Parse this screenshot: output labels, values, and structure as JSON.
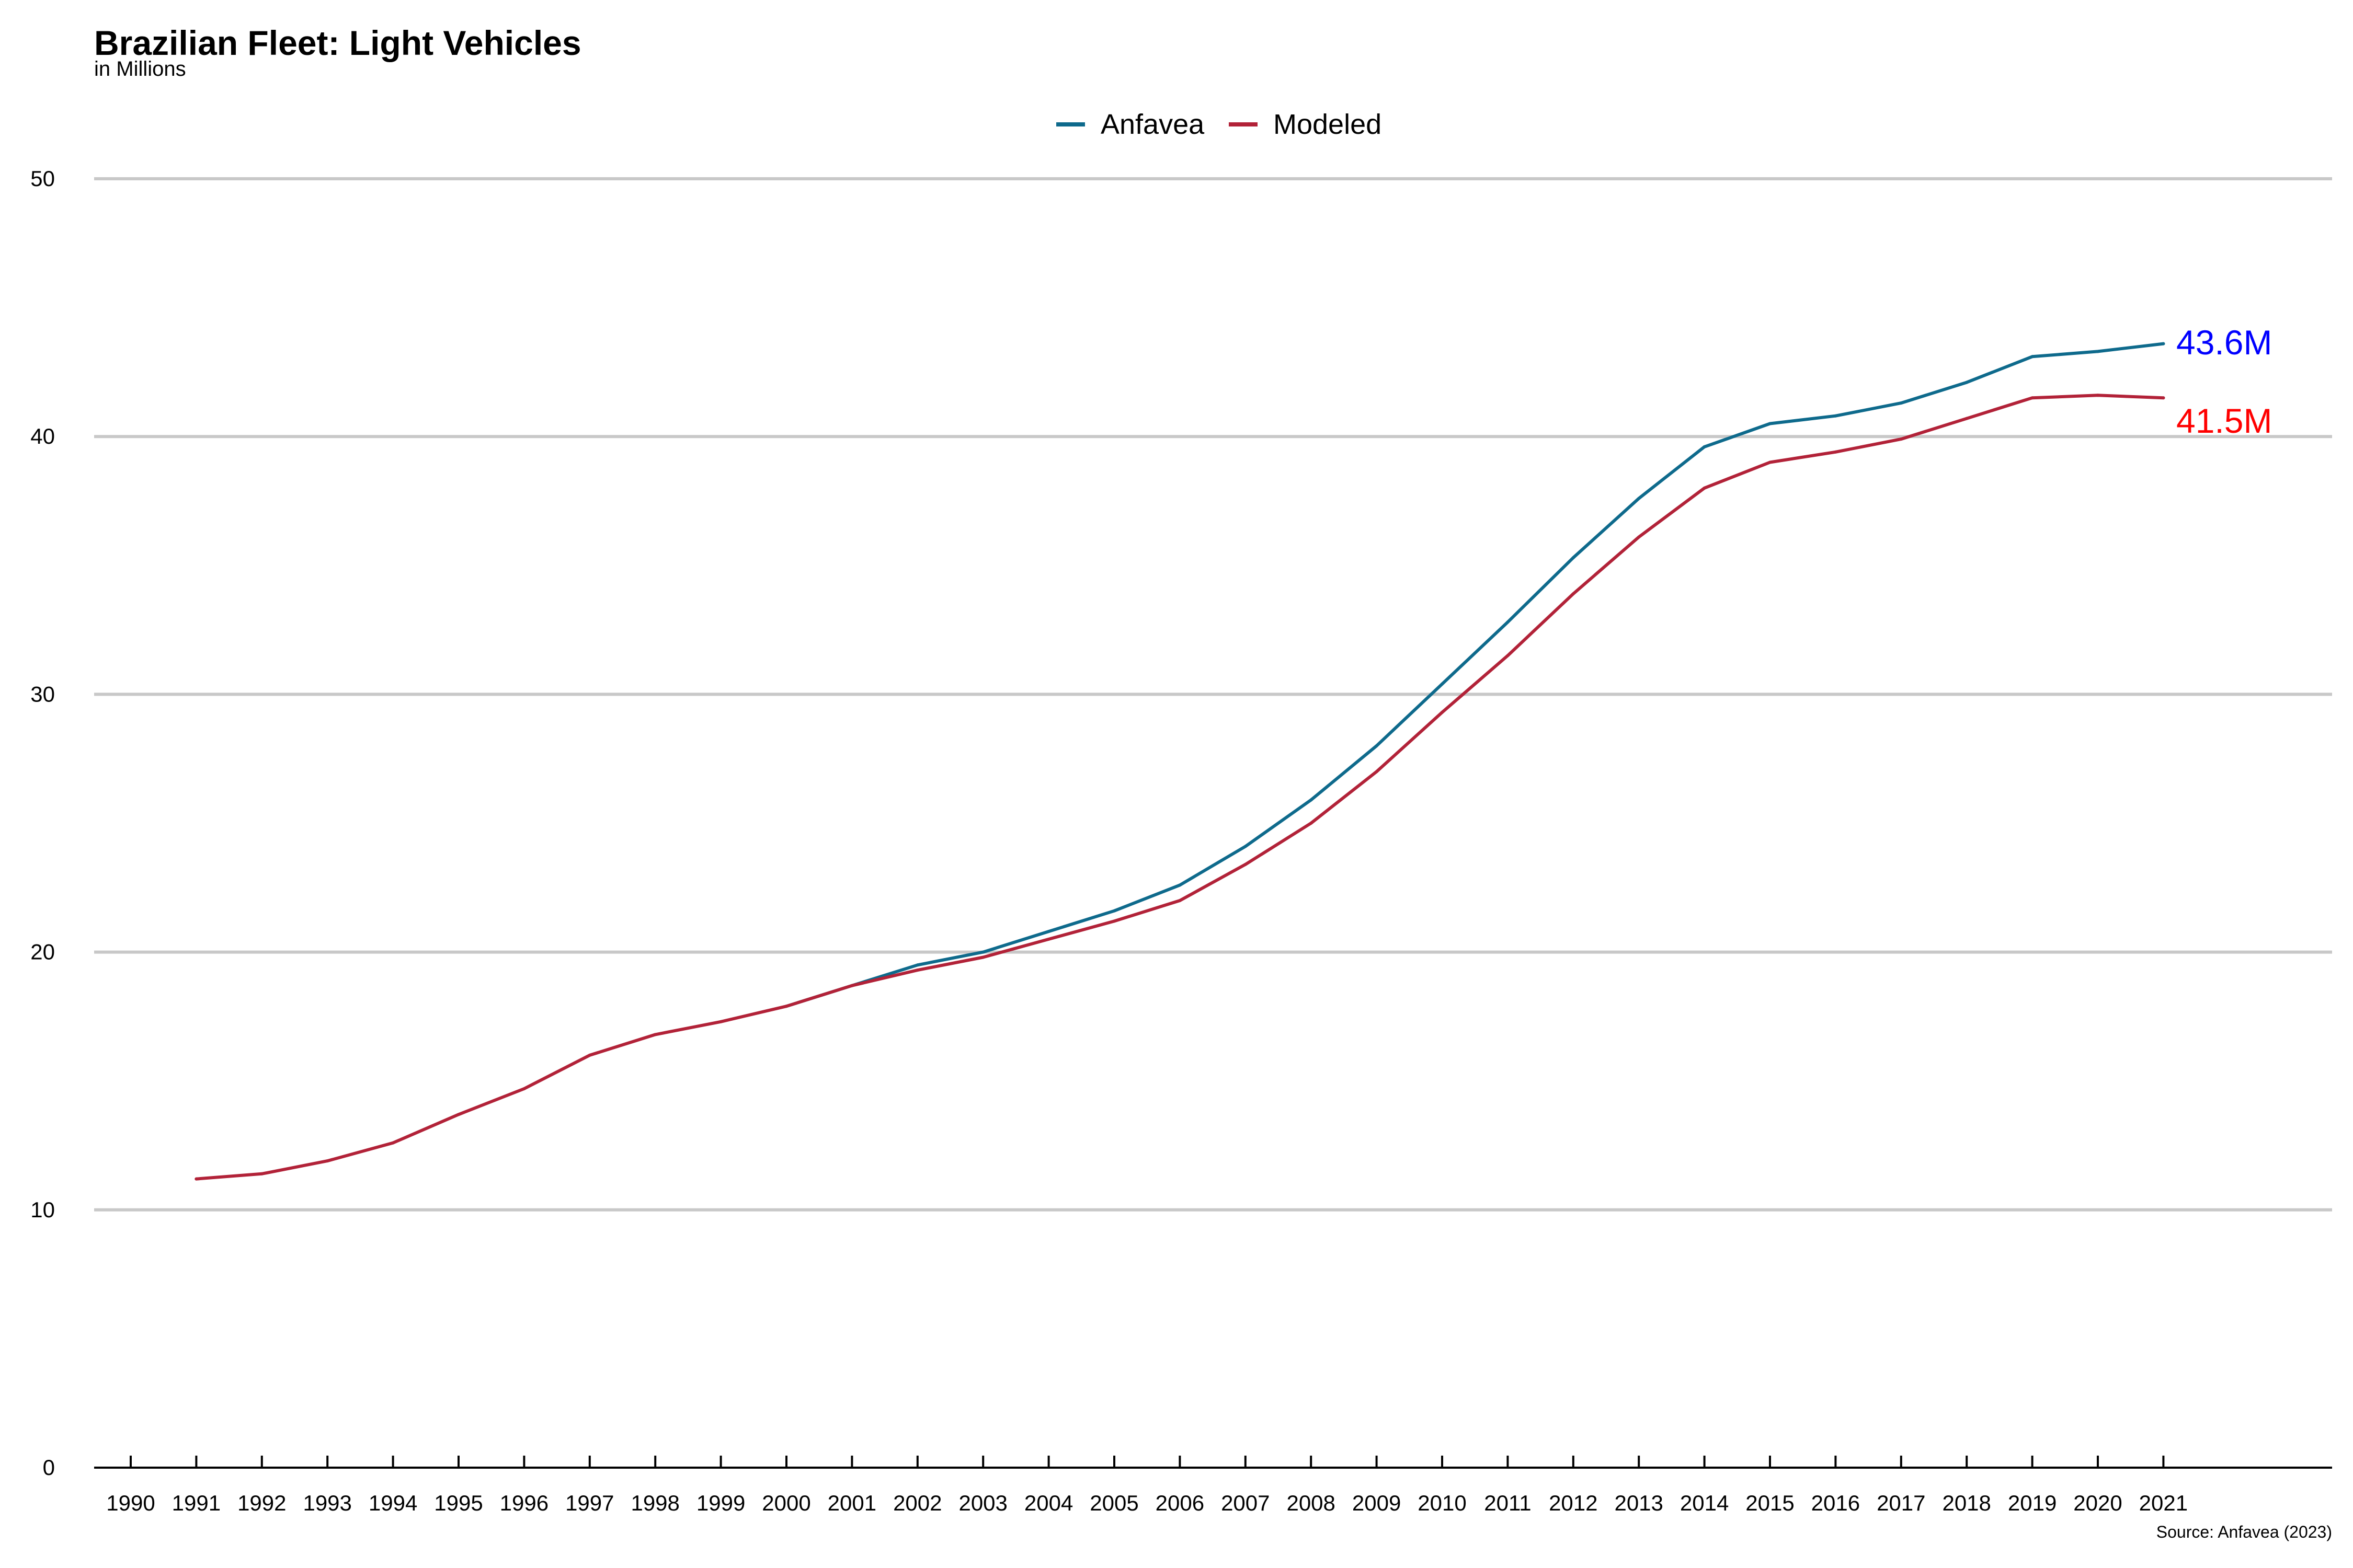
{
  "chart_data": {
    "type": "line",
    "title": "Brazilian Fleet: Light Vehicles",
    "subtitle": "in Millions",
    "source": "Source: Anfavea (2023)",
    "x": [
      1990,
      1991,
      1992,
      1993,
      1994,
      1995,
      1996,
      1997,
      1998,
      1999,
      2000,
      2001,
      2002,
      2003,
      2004,
      2005,
      2006,
      2007,
      2008,
      2009,
      2010,
      2011,
      2012,
      2013,
      2014,
      2015,
      2016,
      2017,
      2018,
      2019,
      2020,
      2021
    ],
    "x_tick_labels": [
      "1990",
      "1991",
      "1992",
      "1993",
      "1994",
      "1995",
      "1996",
      "1997",
      "1998",
      "1999",
      "2000",
      "2001",
      "2002",
      "2003",
      "2004",
      "2005",
      "2006",
      "2007",
      "2008",
      "2009",
      "2010",
      "2011",
      "2012",
      "2013",
      "2014",
      "2015",
      "2016",
      "2017",
      "2018",
      "2019",
      "2020",
      "2021"
    ],
    "ylim": [
      0,
      50
    ],
    "y_ticks": [
      0,
      10,
      20,
      30,
      40,
      50
    ],
    "y_tick_labels": [
      "0",
      "10",
      "20",
      "30",
      "40",
      "50"
    ],
    "grid": "horizontal",
    "legend_position": "top-center",
    "series": [
      {
        "name": "Anfavea",
        "color": "#0e6a8c",
        "x": [
          2000,
          2001,
          2002,
          2003,
          2004,
          2005,
          2006,
          2007,
          2008,
          2009,
          2010,
          2011,
          2012,
          2013,
          2014,
          2015,
          2016,
          2017,
          2018,
          2019,
          2020,
          2021
        ],
        "values": [
          17.9,
          18.7,
          19.5,
          20.0,
          20.8,
          21.6,
          22.6,
          24.1,
          25.9,
          28.0,
          30.4,
          32.8,
          35.3,
          37.6,
          39.6,
          40.5,
          40.8,
          41.3,
          42.1,
          43.1,
          43.3,
          43.6
        ]
      },
      {
        "name": "Modeled",
        "color": "#b22238",
        "x": [
          1991,
          1992,
          1993,
          1994,
          1995,
          1996,
          1997,
          1998,
          1999,
          2000,
          2001,
          2002,
          2003,
          2004,
          2005,
          2006,
          2007,
          2008,
          2009,
          2010,
          2011,
          2012,
          2013,
          2014,
          2015,
          2016,
          2017,
          2018,
          2019,
          2020,
          2021
        ],
        "values": [
          11.2,
          11.4,
          11.9,
          12.6,
          13.7,
          14.7,
          16.0,
          16.8,
          17.3,
          17.9,
          18.7,
          19.3,
          19.8,
          20.5,
          21.2,
          22.0,
          23.4,
          25.0,
          27.0,
          29.3,
          31.5,
          33.9,
          36.1,
          38.0,
          39.0,
          39.4,
          39.9,
          40.7,
          41.5,
          41.6,
          41.5
        ]
      }
    ],
    "end_labels": [
      {
        "text": "43.6M",
        "color": "#0000ff"
      },
      {
        "text": "41.5M",
        "color": "#ff0000"
      }
    ]
  }
}
